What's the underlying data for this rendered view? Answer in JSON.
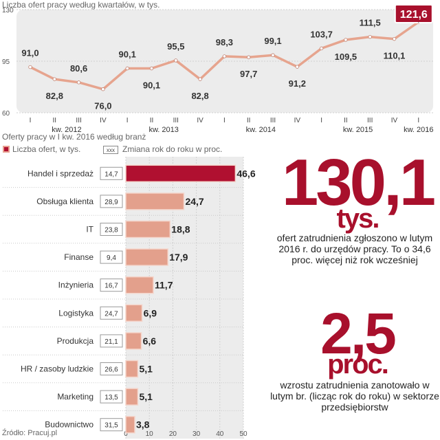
{
  "chart_data": [
    {
      "type": "line",
      "title": "Liczba ofert pracy według kwartałów, w tys.",
      "y_ticks": [
        "130",
        "95",
        "60"
      ],
      "ylim": [
        60,
        130
      ],
      "quarters": [
        "I",
        "II",
        "III",
        "IV",
        "I",
        "II",
        "III",
        "IV",
        "I",
        "II",
        "III",
        "IV",
        "I",
        "II",
        "III",
        "IV",
        "I"
      ],
      "year_labels": [
        {
          "label": "kw. 2012",
          "index": 1.5
        },
        {
          "label": "kw. 2013",
          "index": 5.5
        },
        {
          "label": "kw. 2014",
          "index": 9.5
        },
        {
          "label": "kw. 2015",
          "index": 13.5
        },
        {
          "label": "kw. 2016",
          "index": 16
        }
      ],
      "values": [
        91.0,
        82.8,
        80.6,
        76.0,
        90.1,
        90.1,
        95.5,
        82.8,
        98.3,
        97.7,
        99.1,
        91.2,
        103.7,
        109.5,
        111.5,
        110.1,
        121.6
      ],
      "labels": [
        "91,0",
        "82,8",
        "80,6",
        "76,0",
        "90,1",
        "90,1",
        "95,5",
        "82,8",
        "98,3",
        "97,7",
        "99,1",
        "91,2",
        "103,7",
        "109,5",
        "111,5",
        "110,1",
        "121,6"
      ],
      "label_positions": [
        "above",
        "below",
        "above",
        "below",
        "above",
        "below",
        "above",
        "below",
        "above",
        "below",
        "above",
        "below",
        "above",
        "below",
        "above",
        "below",
        "highlight"
      ]
    },
    {
      "type": "bar",
      "title": "Oferty pracy w I kw. 2016 według branż",
      "legend": [
        "Liczba ofert, w tys.",
        "Zmiana rok do roku w proc."
      ],
      "legend_sample": "xxx",
      "categories": [
        "Handel i sprzedaż",
        "Obsługa klienta",
        "IT",
        "Finanse",
        "Inżynieria",
        "Logistyka",
        "Produkcja",
        "HR / zasoby ludzkie",
        "Marketing",
        "Budownictwo"
      ],
      "values": [
        46.6,
        24.7,
        18.8,
        17.9,
        11.7,
        6.9,
        6.6,
        5.1,
        5.1,
        3.8
      ],
      "value_labels": [
        "46,6",
        "24,7",
        "18,8",
        "17,9",
        "11,7",
        "6,9",
        "6,6",
        "5,1",
        "5,1",
        "3,8"
      ],
      "yoy_labels": [
        "14,7",
        "28,9",
        "23,8",
        "9,4",
        "16,7",
        "24,7",
        "21,1",
        "26,6",
        "13,5",
        "31,5"
      ],
      "x_ticks": [
        0,
        10,
        20,
        30,
        40,
        50
      ],
      "xlim": [
        0,
        50
      ]
    }
  ],
  "source": "Źródło: Pracuj.pl",
  "callouts": {
    "big1": "130,1",
    "big1_unit": "tys.",
    "desc1": "ofert zatrudnienia zgłoszono w lutym 2016 r. do urzędów pracy. To o 34,6 proc. więcej niż rok wcześniej",
    "big2": "2,5",
    "big2_unit": "proc.",
    "desc2": "wzrostu zatrudnienia zanotowało w lutym br. (licząc rok do roku) w sektorze przedsiębiorstw"
  },
  "colors": {
    "accent": "#a8102c",
    "line": "#e6a48e",
    "bar": "#e3a08c",
    "bar_highlight": "#b01030",
    "plot_bg": "#ececec"
  }
}
